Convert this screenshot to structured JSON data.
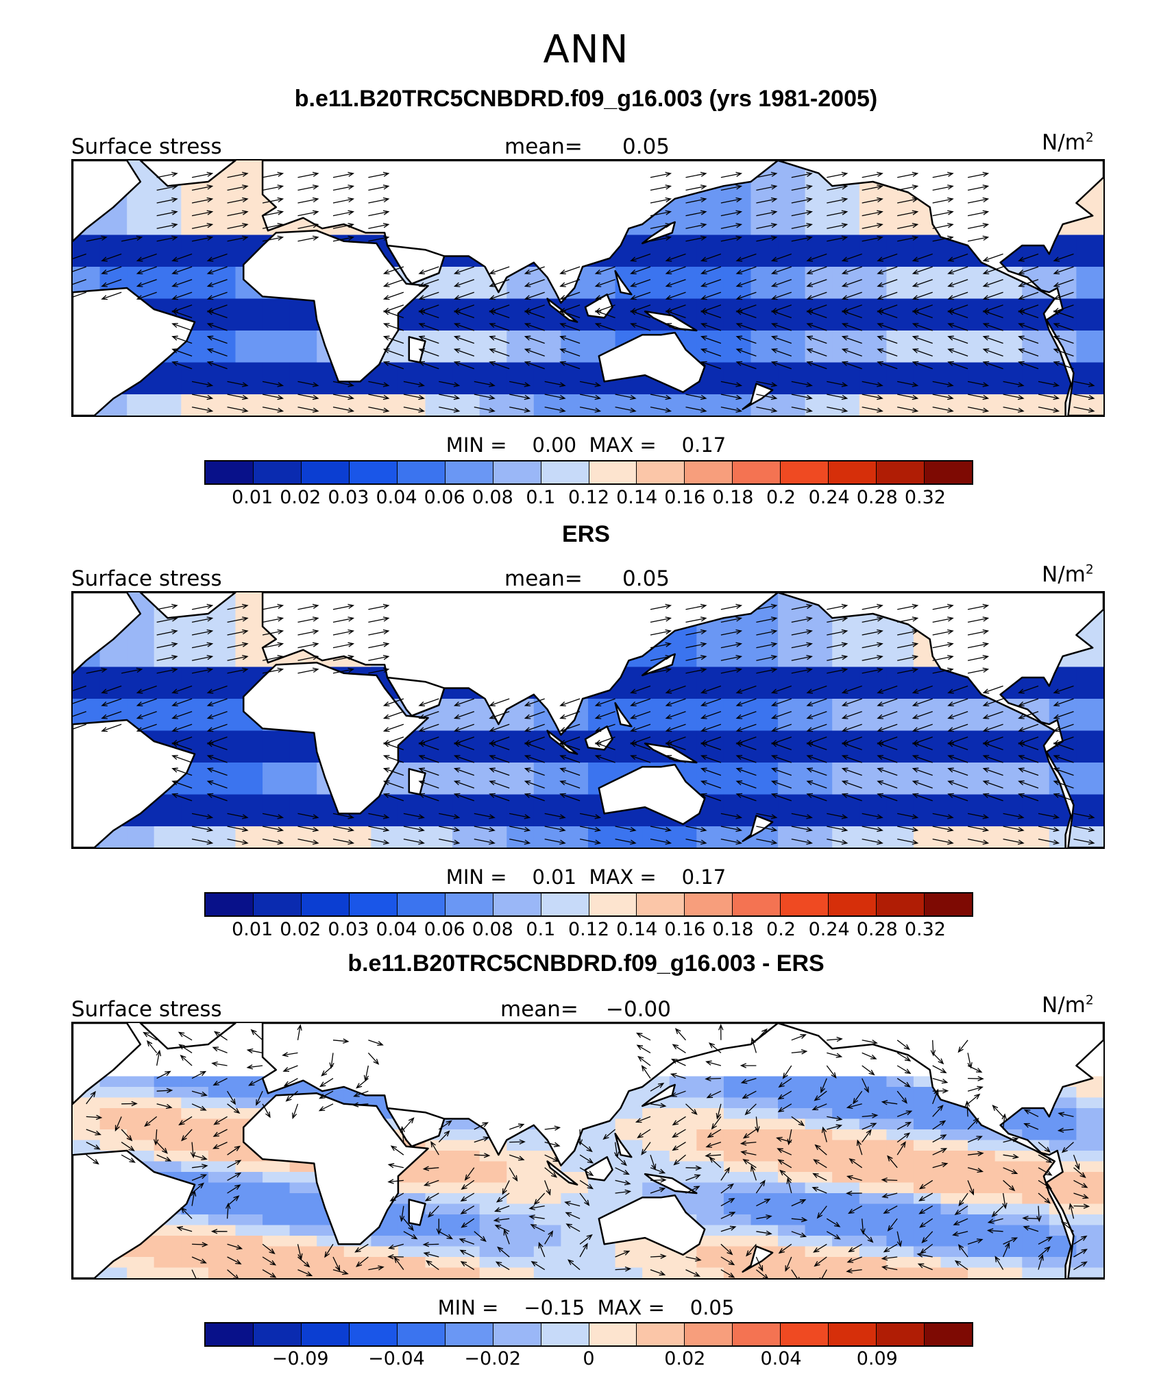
{
  "main_title": "ANN",
  "colors": {
    "palette": [
      "#08118a",
      "#0a2bb0",
      "#0b3ed2",
      "#1a56e8",
      "#3b74ef",
      "#6a97f4",
      "#9ab7f7",
      "#c7daf9",
      "#fde4cf",
      "#fbc6a8",
      "#f79e7c",
      "#f47352",
      "#ef4a22",
      "#d62f0a",
      "#b01d05",
      "#7e0a03"
    ],
    "land": "#ffffff",
    "coast": "#000000"
  },
  "panels": [
    {
      "title": "b.e11.B20TRC5CNBDRD.f09_g16.003 (yrs 1981-2005)",
      "variable": "Surface stress",
      "mean_label": "mean=",
      "mean_value": "0.05",
      "units": "N/m",
      "units_sup": "2",
      "min_label": "MIN =",
      "min_value": "0.00",
      "max_label": "MAX =",
      "max_value": "0.17",
      "field": "abs",
      "ticks": [
        "0.01",
        "0.02",
        "0.03",
        "0.04",
        "0.06",
        "0.08",
        "0.1",
        "0.12",
        "0.14",
        "0.16",
        "0.18",
        "0.2",
        "0.24",
        "0.28",
        "0.32"
      ]
    },
    {
      "title": "ERS",
      "variable": "Surface stress",
      "mean_label": "mean=",
      "mean_value": "0.05",
      "units": "N/m",
      "units_sup": "2",
      "min_label": "MIN =",
      "min_value": "0.01",
      "max_label": "MAX =",
      "max_value": "0.17",
      "field": "abs",
      "ticks": [
        "0.01",
        "0.02",
        "0.03",
        "0.04",
        "0.06",
        "0.08",
        "0.1",
        "0.12",
        "0.14",
        "0.16",
        "0.18",
        "0.2",
        "0.24",
        "0.28",
        "0.32"
      ]
    },
    {
      "title": "b.e11.B20TRC5CNBDRD.f09_g16.003 - ERS",
      "variable": "Surface stress",
      "mean_label": "mean=",
      "mean_value": "−0.00",
      "units": "N/m",
      "units_sup": "2",
      "min_label": "MIN =",
      "min_value": "−0.15",
      "max_label": "MAX =",
      "max_value": "0.05",
      "field": "diff",
      "ticks": [
        "−0.09",
        "−0.04",
        "−0.02",
        "0",
        "0.02",
        "0.04",
        "0.09"
      ]
    }
  ]
}
